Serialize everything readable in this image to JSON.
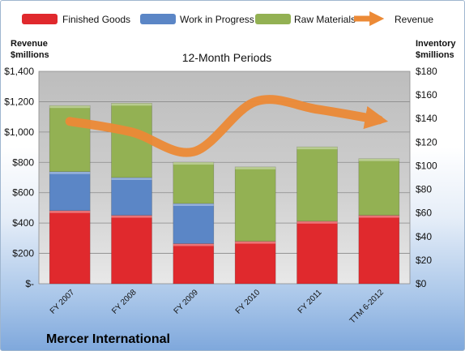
{
  "chart_data": {
    "type": "bar",
    "subtitle": "12-Month Periods",
    "company": "Mercer International",
    "left_axis_title": [
      "Revenue",
      "$millions"
    ],
    "right_axis_title": [
      "Inventory",
      "$millions"
    ],
    "categories": [
      "FY 2007",
      "FY 2008",
      "FY 2009",
      "FY 2010",
      "FY 2011",
      "TTM 6-2012"
    ],
    "series": [
      {
        "name": "Finished Goods",
        "axis": "right",
        "stack": true,
        "color": "#e0292d",
        "values": [
          62,
          58,
          34,
          36,
          53,
          58
        ]
      },
      {
        "name": "Work in Progress",
        "axis": "right",
        "stack": true,
        "color": "#5b86c6",
        "values": [
          33,
          32,
          34,
          0,
          0,
          0
        ]
      },
      {
        "name": "Raw Materials",
        "axis": "right",
        "stack": true,
        "color": "#93b153",
        "values": [
          56,
          63,
          35,
          63,
          63,
          48
        ]
      },
      {
        "name": "Revenue",
        "axis": "left",
        "type": "line",
        "color": "#ec8a36",
        "values": [
          1070,
          1000,
          870,
          1200,
          1150,
          1080
        ]
      }
    ],
    "left_axis": {
      "min": 0,
      "max": 1400,
      "step": 200,
      "labels": [
        "$-",
        "$200",
        "$400",
        "$600",
        "$800",
        "$1,000",
        "$1,200",
        "$1,400"
      ]
    },
    "right_axis": {
      "min": 0,
      "max": 180,
      "step": 20,
      "labels": [
        "$0",
        "$20",
        "$40",
        "$60",
        "$80",
        "$100",
        "$120",
        "$140",
        "$160",
        "$180"
      ]
    },
    "grid": true,
    "legend_position": "top"
  }
}
